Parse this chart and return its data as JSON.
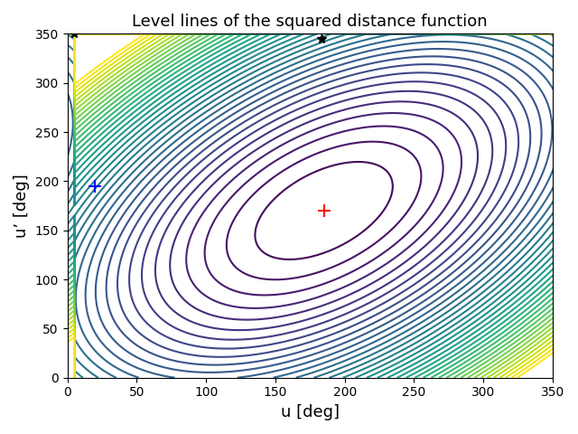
{
  "title": "Level lines of the squared distance function",
  "xlabel": "u [deg]",
  "ylabel": "u’ [deg]",
  "xlim": [
    0,
    350
  ],
  "ylim": [
    0,
    350
  ],
  "xticks": [
    0,
    50,
    100,
    150,
    200,
    250,
    300,
    350
  ],
  "yticks": [
    0,
    50,
    100,
    150,
    200,
    250,
    300,
    350
  ],
  "red_plus": [
    185,
    170
  ],
  "blue_plus": [
    20,
    195
  ],
  "black_star_1": [
    5,
    350
  ],
  "black_star_2": [
    183,
    345
  ],
  "n_levels": 40,
  "colormap": "viridis",
  "title_fontsize": 13,
  "label_fontsize": 13,
  "u0": 185,
  "v0": 170,
  "u_blue": 20,
  "v_blue": 195,
  "u_star1": 5,
  "v_star1": 350,
  "u_star2": 183,
  "v_star2": 345
}
